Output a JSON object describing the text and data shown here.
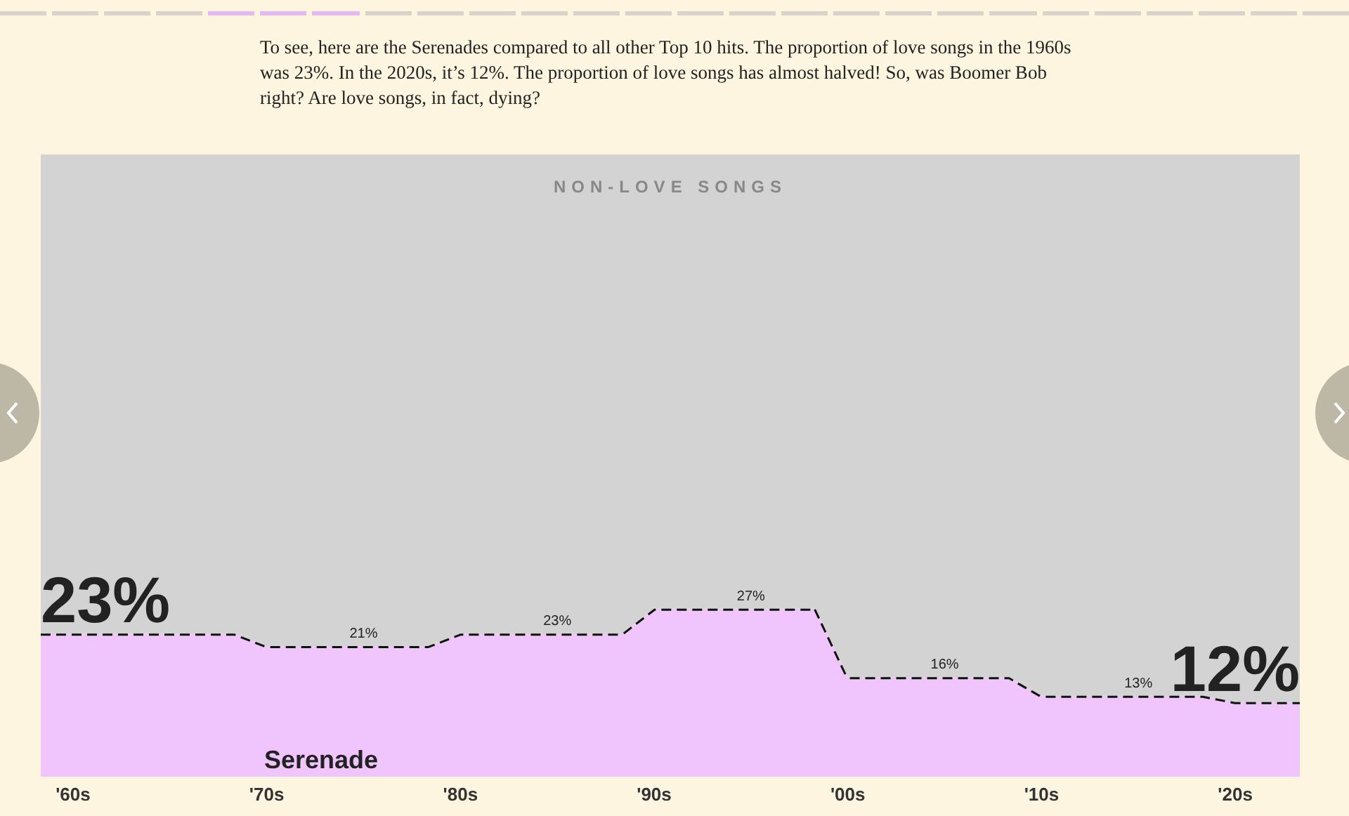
{
  "chart_data": {
    "type": "area",
    "stacked": true,
    "title": "To see, here are the Serenades compared to all other Top 10 hits. The proportion of love songs in the 1960s was 23%. In the 2020s, it’s 12%. The proportion of love songs has almost halved! So, was Boomer Bob right? Are love songs, in fact, dying?",
    "categories": [
      null,
      "'60s",
      null,
      null,
      null,
      null,
      null,
      "'70s",
      null,
      null,
      null,
      null,
      null,
      "'80s",
      null,
      null,
      null,
      null,
      null,
      "'90s",
      null,
      null,
      null,
      null,
      null,
      "'00s",
      null,
      null,
      null,
      null,
      null,
      "'10s",
      null,
      null,
      null,
      null,
      null,
      "'20s",
      null,
      null
    ],
    "series": [
      {
        "name": "Serenade",
        "color": "#f0c4fc",
        "line_style": "dashed",
        "values": [
          23,
          23,
          23,
          23,
          23,
          23,
          23,
          21,
          21,
          21,
          21,
          21,
          21,
          23,
          23,
          23,
          23,
          23,
          23,
          27,
          27,
          27,
          27,
          27,
          27,
          16,
          16,
          16,
          16,
          16,
          16,
          13,
          13,
          13,
          13,
          13,
          13,
          12,
          12,
          12
        ],
        "value_labels": [
          "23%",
          null,
          null,
          null,
          null,
          null,
          null,
          null,
          null,
          null,
          "21%",
          null,
          null,
          null,
          null,
          null,
          "23%",
          null,
          null,
          null,
          null,
          null,
          "27%",
          null,
          null,
          null,
          null,
          null,
          "16%",
          null,
          null,
          null,
          null,
          null,
          "13%",
          null,
          null,
          null,
          null,
          "12%"
        ]
      },
      {
        "name": "NON-LOVE SONGS",
        "color": "#d3d3d3",
        "values": [
          77,
          77,
          77,
          77,
          77,
          77,
          77,
          79,
          79,
          79,
          79,
          79,
          79,
          77,
          77,
          77,
          77,
          77,
          77,
          73,
          73,
          73,
          73,
          73,
          73,
          84,
          84,
          84,
          84,
          84,
          84,
          87,
          87,
          87,
          87,
          87,
          87,
          88,
          88,
          88
        ]
      }
    ]
  }
}
